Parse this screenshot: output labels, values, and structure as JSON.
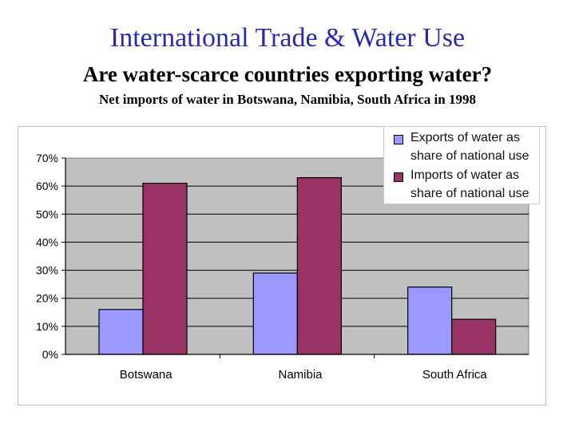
{
  "header": {
    "title": "International Trade & Water Use",
    "subtitle": "Are water-scarce countries exporting water?",
    "caption": "Net imports of water in Botswana, Namibia, South Africa in 1998"
  },
  "chart_data": {
    "type": "bar",
    "categories": [
      "Botswana",
      "Namibia",
      "South Africa"
    ],
    "series": [
      {
        "name": "Exports of water as share of national use",
        "values": [
          16,
          29,
          24
        ],
        "color": "#9999ff"
      },
      {
        "name": "Imports of water as share of national use",
        "values": [
          61,
          63,
          12.5
        ],
        "color": "#993366"
      }
    ],
    "yticks": [
      "0%",
      "10%",
      "20%",
      "30%",
      "40%",
      "50%",
      "60%",
      "70%"
    ],
    "ylim": [
      0,
      70
    ],
    "legend_position": "top-right",
    "grid": true,
    "plot_background": "#c0c0c0"
  }
}
